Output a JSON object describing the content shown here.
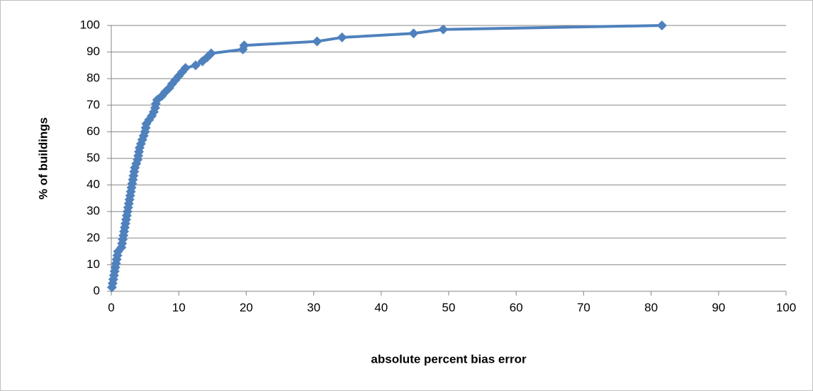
{
  "chart_data": {
    "type": "line",
    "xlabel": "absolute percent bias error",
    "ylabel": "% of buildings",
    "x": [
      0.1,
      0.2,
      0.3,
      0.4,
      0.5,
      0.6,
      0.7,
      0.8,
      0.9,
      1.0,
      1.5,
      1.6,
      1.7,
      1.8,
      1.9,
      2.0,
      2.1,
      2.2,
      2.3,
      2.4,
      2.5,
      2.6,
      2.7,
      2.8,
      2.9,
      3.0,
      3.1,
      3.2,
      3.3,
      3.4,
      3.5,
      3.7,
      3.9,
      4.0,
      4.1,
      4.2,
      4.4,
      4.6,
      4.8,
      5.0,
      5.1,
      5.2,
      5.6,
      6.0,
      6.3,
      6.5,
      6.6,
      6.8,
      7.5,
      8.0,
      8.6,
      9.0,
      9.5,
      10.0,
      10.5,
      11.0,
      12.5,
      13.5,
      14.2,
      14.8,
      19.5,
      19.7,
      30.5,
      34.2,
      44.8,
      49.2,
      81.6
    ],
    "series": [
      {
        "color": "#4f81bd",
        "values": [
          1.5,
          3,
          4.5,
          6,
          7.5,
          9,
          10.5,
          12,
          13.5,
          15,
          16.5,
          18,
          19.5,
          21,
          22.5,
          24,
          25.5,
          27,
          28.5,
          30,
          31.5,
          33,
          34.5,
          36,
          37.5,
          39,
          40.5,
          42,
          43.5,
          45,
          46.5,
          48,
          49.5,
          51,
          52.5,
          54,
          55.5,
          57,
          58.5,
          60,
          61.5,
          63,
          64.5,
          66,
          67.5,
          69,
          70.5,
          72,
          73.5,
          75,
          76.5,
          78,
          79.5,
          81,
          82.5,
          84,
          85,
          86.5,
          88,
          89.5,
          91,
          92.5,
          94,
          95.5,
          97,
          98.5,
          100
        ]
      }
    ],
    "xlim": [
      0,
      100
    ],
    "xticks": [
      0,
      10,
      20,
      30,
      40,
      50,
      60,
      70,
      80,
      90,
      100
    ],
    "ylim": [
      0,
      100
    ],
    "yticks": [
      0,
      10,
      20,
      30,
      40,
      50,
      60,
      70,
      80,
      90,
      100
    ],
    "grid": true
  }
}
